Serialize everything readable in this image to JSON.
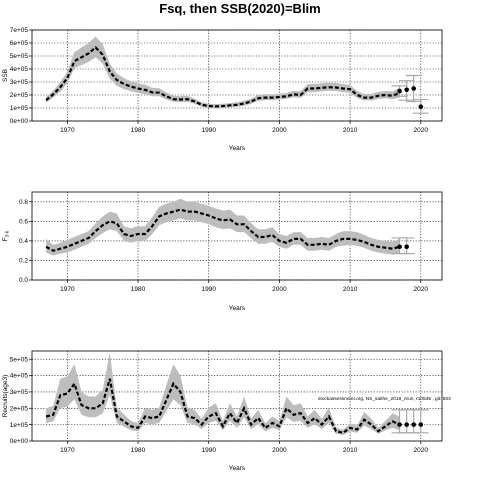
{
  "title": "Fsq, then SSB(2020)=Blim",
  "annotation": "stockassessment.org, NS_saithe_2018_nrun, r10545 , git: 503",
  "colors": {
    "band": "#bdbdbd",
    "line": "#000000",
    "grid": "#000000",
    "forecast": "#aaaaaa"
  },
  "chart_data": [
    {
      "type": "line",
      "name": "ssb",
      "xlabel": "Years",
      "ylabel": "SSB",
      "xlim": [
        1965,
        2023
      ],
      "ylim": [
        0,
        700000
      ],
      "x_ticks": [
        1970,
        1980,
        1990,
        2000,
        2010,
        2020
      ],
      "x_tick_labels": [
        "1970",
        "1980",
        "1990",
        "2000",
        "2010",
        "2020"
      ],
      "y_ticks": [
        0,
        100000,
        200000,
        300000,
        400000,
        500000,
        600000,
        700000
      ],
      "y_tick_labels": [
        "0e+00",
        "1e+05",
        "2e+05",
        "3e+05",
        "4e+05",
        "5e+05",
        "6e+05",
        "7e+05"
      ],
      "grid": true,
      "x": [
        1967,
        1968,
        1969,
        1970,
        1971,
        1972,
        1973,
        1974,
        1975,
        1976,
        1977,
        1978,
        1979,
        1980,
        1981,
        1982,
        1983,
        1984,
        1985,
        1986,
        1987,
        1988,
        1989,
        1990,
        1991,
        1992,
        1993,
        1994,
        1995,
        1996,
        1997,
        1998,
        1999,
        2000,
        2001,
        2002,
        2003,
        2004,
        2005,
        2006,
        2007,
        2008,
        2009,
        2010,
        2011,
        2012,
        2013,
        2014,
        2015,
        2016,
        2017
      ],
      "y": [
        160000,
        205000,
        260000,
        330000,
        460000,
        490000,
        520000,
        565000,
        510000,
        380000,
        315000,
        285000,
        265000,
        250000,
        240000,
        220000,
        218000,
        190000,
        168000,
        165000,
        168000,
        150000,
        125000,
        115000,
        112000,
        115000,
        120000,
        125000,
        135000,
        150000,
        175000,
        180000,
        180000,
        185000,
        190000,
        205000,
        200000,
        250000,
        250000,
        255000,
        260000,
        258000,
        250000,
        245000,
        200000,
        180000,
        180000,
        195000,
        200000,
        195000,
        215000
      ],
      "lower": [
        140000,
        180000,
        225000,
        290000,
        405000,
        430000,
        455000,
        490000,
        440000,
        325000,
        270000,
        245000,
        228000,
        215000,
        205000,
        190000,
        190000,
        165000,
        148000,
        145000,
        148000,
        132000,
        110000,
        100000,
        98000,
        100000,
        105000,
        110000,
        118000,
        132000,
        155000,
        160000,
        160000,
        165000,
        170000,
        182000,
        178000,
        222000,
        222000,
        228000,
        232000,
        230000,
        222000,
        218000,
        176000,
        158000,
        158000,
        170000,
        175000,
        168000,
        180000
      ],
      "upper": [
        185000,
        235000,
        300000,
        380000,
        530000,
        565000,
        600000,
        650000,
        590000,
        440000,
        365000,
        330000,
        305000,
        290000,
        280000,
        255000,
        252000,
        220000,
        195000,
        190000,
        195000,
        172000,
        145000,
        133000,
        130000,
        133000,
        138000,
        145000,
        155000,
        172000,
        200000,
        205000,
        205000,
        210000,
        215000,
        232000,
        228000,
        285000,
        285000,
        290000,
        295000,
        292000,
        285000,
        278000,
        230000,
        208000,
        208000,
        225000,
        230000,
        228000,
        255000
      ],
      "forecast": {
        "x": [
          2017,
          2018,
          2019,
          2020
        ],
        "y": [
          230000,
          240000,
          250000,
          110000
        ],
        "lower": [
          190000,
          160000,
          150000,
          60000
        ],
        "upper": [
          270000,
          310000,
          350000,
          165000
        ]
      }
    },
    {
      "type": "line",
      "name": "f",
      "xlabel": "Years",
      "ylabel": "F3-6",
      "ylabel_main": "F",
      "ylabel_sub": "3-6",
      "xlim": [
        1965,
        2023
      ],
      "ylim": [
        0,
        0.9
      ],
      "x_ticks": [
        1970,
        1980,
        1990,
        2000,
        2010,
        2020
      ],
      "x_tick_labels": [
        "1970",
        "1980",
        "1990",
        "2000",
        "2010",
        "2020"
      ],
      "y_ticks": [
        0,
        0.2,
        0.4,
        0.6,
        0.8
      ],
      "y_tick_labels": [
        "0.0",
        "0.2",
        "0.4",
        "0.6",
        "0.8"
      ],
      "grid": true,
      "x": [
        1967,
        1968,
        1969,
        1970,
        1971,
        1972,
        1973,
        1974,
        1975,
        1976,
        1977,
        1978,
        1979,
        1980,
        1981,
        1982,
        1983,
        1984,
        1985,
        1986,
        1987,
        1988,
        1989,
        1990,
        1991,
        1992,
        1993,
        1994,
        1995,
        1996,
        1997,
        1998,
        1999,
        2000,
        2001,
        2002,
        2003,
        2004,
        2005,
        2006,
        2007,
        2008,
        2009,
        2010,
        2011,
        2012,
        2013,
        2014,
        2015,
        2016,
        2017
      ],
      "y": [
        0.34,
        0.3,
        0.32,
        0.34,
        0.37,
        0.4,
        0.43,
        0.5,
        0.56,
        0.6,
        0.58,
        0.47,
        0.45,
        0.47,
        0.47,
        0.55,
        0.65,
        0.68,
        0.7,
        0.72,
        0.7,
        0.7,
        0.68,
        0.66,
        0.63,
        0.61,
        0.62,
        0.57,
        0.57,
        0.5,
        0.44,
        0.44,
        0.46,
        0.4,
        0.38,
        0.42,
        0.42,
        0.36,
        0.36,
        0.37,
        0.36,
        0.4,
        0.42,
        0.42,
        0.41,
        0.39,
        0.36,
        0.34,
        0.33,
        0.32,
        0.34
      ],
      "lower": [
        0.28,
        0.25,
        0.27,
        0.28,
        0.31,
        0.34,
        0.37,
        0.43,
        0.48,
        0.52,
        0.5,
        0.4,
        0.38,
        0.4,
        0.4,
        0.47,
        0.56,
        0.59,
        0.61,
        0.63,
        0.61,
        0.61,
        0.59,
        0.57,
        0.54,
        0.52,
        0.53,
        0.49,
        0.49,
        0.43,
        0.37,
        0.37,
        0.39,
        0.34,
        0.32,
        0.36,
        0.36,
        0.3,
        0.3,
        0.31,
        0.3,
        0.34,
        0.35,
        0.36,
        0.35,
        0.33,
        0.3,
        0.28,
        0.27,
        0.26,
        0.28
      ],
      "upper": [
        0.42,
        0.36,
        0.38,
        0.41,
        0.44,
        0.47,
        0.5,
        0.58,
        0.65,
        0.7,
        0.68,
        0.55,
        0.53,
        0.55,
        0.55,
        0.64,
        0.75,
        0.78,
        0.8,
        0.83,
        0.8,
        0.8,
        0.78,
        0.76,
        0.73,
        0.71,
        0.72,
        0.66,
        0.66,
        0.58,
        0.52,
        0.52,
        0.54,
        0.47,
        0.45,
        0.49,
        0.49,
        0.43,
        0.43,
        0.44,
        0.43,
        0.47,
        0.5,
        0.5,
        0.49,
        0.46,
        0.43,
        0.41,
        0.4,
        0.39,
        0.42
      ],
      "forecast": {
        "x": [
          2017,
          2018
        ],
        "y": [
          0.34,
          0.34
        ],
        "lower": [
          0.27,
          0.27
        ],
        "upper": [
          0.43,
          0.43
        ]
      }
    },
    {
      "type": "line",
      "name": "recruits",
      "xlabel": "Years",
      "ylabel": "Recruits(age3)",
      "xlim": [
        1965,
        2023
      ],
      "ylim": [
        0,
        550000
      ],
      "x_ticks": [
        1970,
        1980,
        1990,
        2000,
        2010,
        2020
      ],
      "x_tick_labels": [
        "1970",
        "1980",
        "1990",
        "2000",
        "2010",
        "2020"
      ],
      "y_ticks": [
        0,
        100000,
        200000,
        300000,
        400000,
        500000
      ],
      "y_tick_labels": [
        "0e+00",
        "1e+05",
        "2e+05",
        "3e+05",
        "4e+05",
        "5e+05"
      ],
      "grid": true,
      "x": [
        1967,
        1968,
        1969,
        1970,
        1971,
        1972,
        1973,
        1974,
        1975,
        1976,
        1977,
        1978,
        1979,
        1980,
        1981,
        1982,
        1983,
        1984,
        1985,
        1986,
        1987,
        1988,
        1989,
        1990,
        1991,
        1992,
        1993,
        1994,
        1995,
        1996,
        1997,
        1998,
        1999,
        2000,
        2001,
        2002,
        2003,
        2004,
        2005,
        2006,
        2007,
        2008,
        2009,
        2010,
        2011,
        2012,
        2013,
        2014,
        2015,
        2016,
        2017
      ],
      "y": [
        150000,
        160000,
        280000,
        290000,
        350000,
        220000,
        200000,
        200000,
        230000,
        380000,
        150000,
        120000,
        90000,
        80000,
        150000,
        140000,
        150000,
        250000,
        350000,
        300000,
        150000,
        140000,
        100000,
        150000,
        170000,
        90000,
        170000,
        110000,
        200000,
        100000,
        140000,
        80000,
        110000,
        90000,
        200000,
        160000,
        170000,
        110000,
        140000,
        100000,
        150000,
        60000,
        50000,
        80000,
        70000,
        130000,
        100000,
        60000,
        90000,
        120000,
        100000
      ],
      "lower": [
        110000,
        120000,
        200000,
        210000,
        255000,
        160000,
        145000,
        145000,
        168000,
        280000,
        110000,
        88000,
        66000,
        58000,
        110000,
        102000,
        110000,
        182000,
        255000,
        218000,
        110000,
        102000,
        73000,
        110000,
        124000,
        66000,
        124000,
        80000,
        146000,
        73000,
        102000,
        58000,
        80000,
        66000,
        146000,
        117000,
        124000,
        80000,
        102000,
        73000,
        110000,
        44000,
        36000,
        58000,
        51000,
        95000,
        73000,
        44000,
        66000,
        80000,
        65000
      ],
      "upper": [
        200000,
        215000,
        380000,
        395000,
        470000,
        300000,
        272000,
        272000,
        312000,
        540000,
        205000,
        163000,
        122000,
        109000,
        205000,
        190000,
        205000,
        340000,
        470000,
        400000,
        205000,
        190000,
        136000,
        205000,
        231000,
        122000,
        231000,
        150000,
        272000,
        136000,
        190000,
        109000,
        150000,
        122000,
        272000,
        218000,
        231000,
        150000,
        190000,
        136000,
        205000,
        82000,
        68000,
        109000,
        95000,
        177000,
        136000,
        82000,
        122000,
        170000,
        150000
      ],
      "forecast": {
        "x": [
          2017,
          2018,
          2019,
          2020
        ],
        "y": [
          100000,
          100000,
          100000,
          100000
        ],
        "lower": [
          50000,
          50000,
          50000,
          50000
        ],
        "upper": [
          190000,
          190000,
          190000,
          190000
        ]
      }
    }
  ]
}
